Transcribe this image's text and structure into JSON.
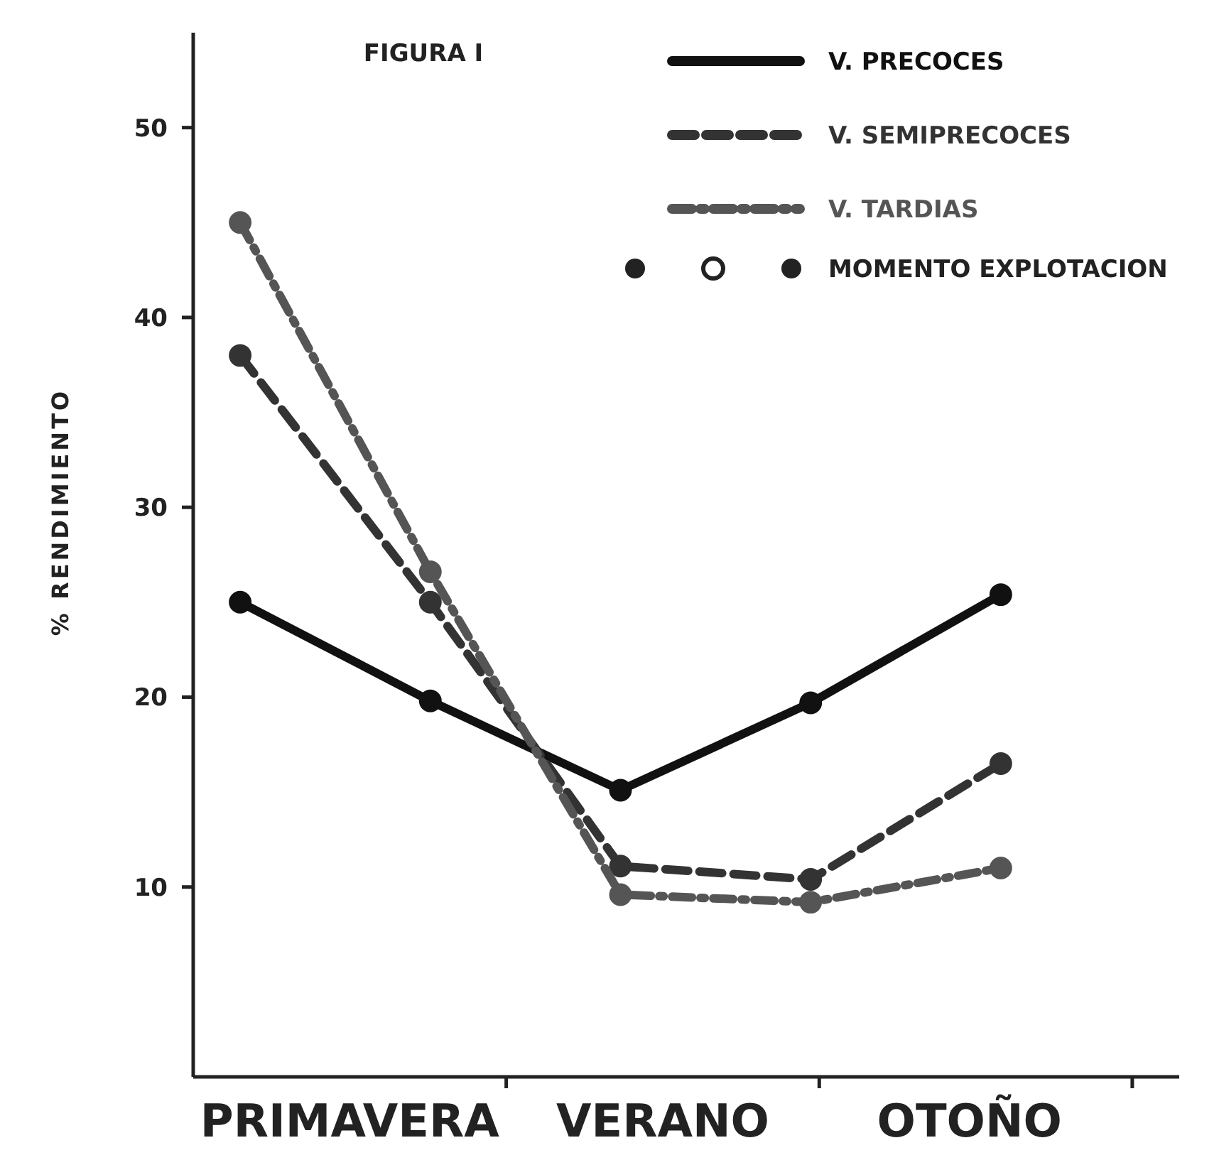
{
  "chart_data": {
    "type": "line",
    "title": "FIGURA I",
    "ylabel": "% RENDIMIENTO",
    "categories": [
      null,
      null,
      null,
      null,
      null
    ],
    "ylim": [
      0,
      55
    ],
    "yticks": [
      10,
      20,
      30,
      40,
      50
    ],
    "grid": false,
    "legend": "top right",
    "marker": "circle",
    "annotations": [
      "PRIMAVERA",
      "VERANO",
      "OTOÑO",
      "MOMENTO EXPLOTACION"
    ],
    "series": [
      {
        "name": "V. PRECOCES",
        "color": "#111111",
        "line_style": "solid",
        "values": [
          25,
          19.8,
          15.1,
          19.7,
          25.4
        ]
      },
      {
        "name": "V. SEMIPRECOCES",
        "color": "#333333",
        "line_style": "dashed",
        "values": [
          38,
          25,
          11.1,
          10.4,
          16.5
        ]
      },
      {
        "name": "V. TARDIAS",
        "color": "#555555",
        "line_style": "dashdot",
        "values": [
          45,
          26.6,
          9.6,
          9.2,
          11
        ]
      }
    ]
  }
}
